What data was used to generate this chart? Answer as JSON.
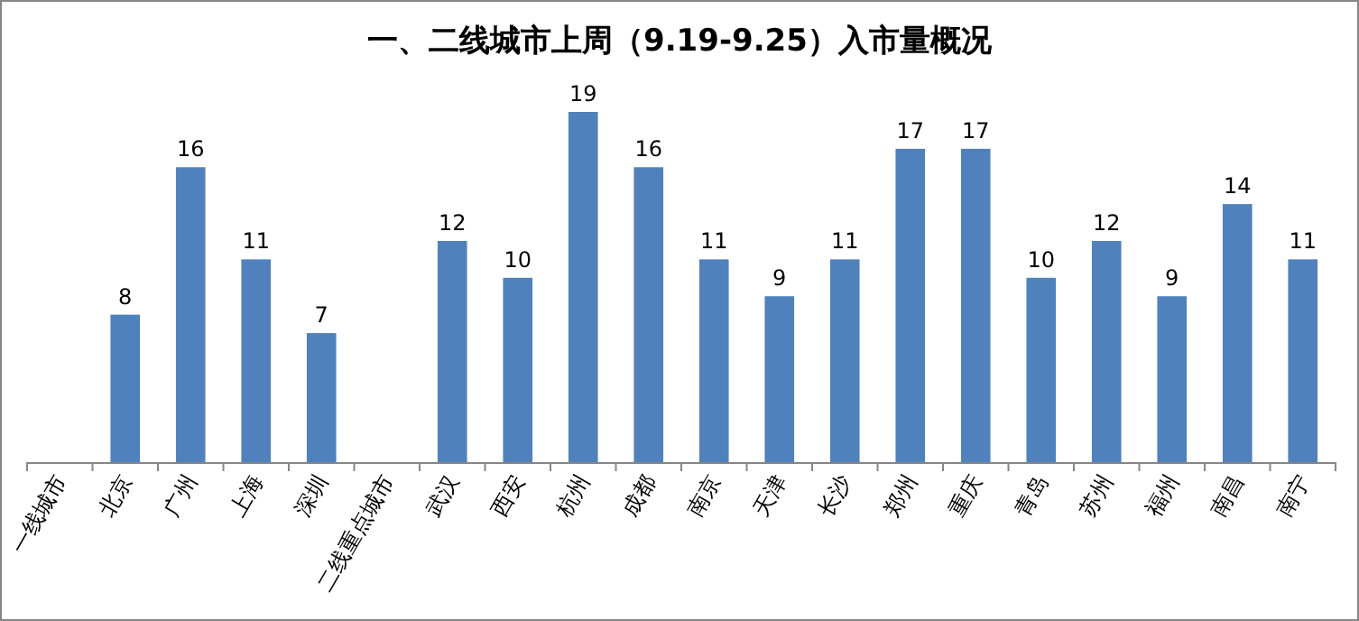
{
  "chart_data": {
    "type": "bar",
    "title": "一、二线城市上周（9.19-9.25）入市量概况",
    "categories": [
      "一线城市",
      "北京",
      "广州",
      "上海",
      "深圳",
      "二线重点城市",
      "武汉",
      "西安",
      "杭州",
      "成都",
      "南京",
      "天津",
      "长沙",
      "郑州",
      "重庆",
      "青岛",
      "苏州",
      "福州",
      "南昌",
      "南宁"
    ],
    "values": [
      null,
      8,
      16,
      11,
      7,
      null,
      12,
      10,
      19,
      16,
      11,
      9,
      11,
      17,
      17,
      10,
      12,
      9,
      14,
      11
    ],
    "color": "#4f81bd",
    "data_labels": true
  }
}
